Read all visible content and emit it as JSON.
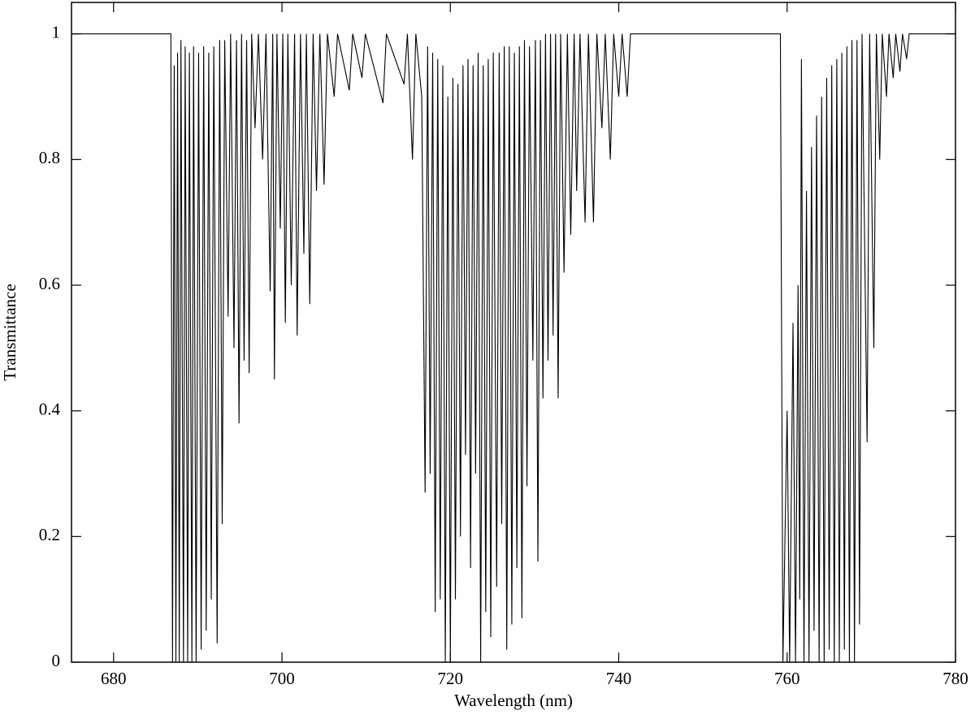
{
  "chart_data": {
    "type": "line",
    "x_label": "Wavelength (nm)",
    "y_label": "Transmittance",
    "color": "#000000",
    "xlim": [
      675,
      780
    ],
    "ylim": [
      0,
      1.05
    ],
    "xticks": [
      680,
      700,
      720,
      740,
      760,
      780
    ],
    "yticks": [
      0,
      0.2,
      0.4,
      0.6,
      0.8,
      1
    ],
    "x": [
      675,
      686.8,
      687.0,
      687.2,
      687.4,
      687.6,
      687.8,
      688.0,
      688.3,
      688.5,
      688.8,
      689.0,
      689.3,
      689.5,
      689.8,
      690.1,
      690.4,
      690.7,
      691.0,
      691.3,
      691.6,
      691.9,
      692.3,
      692.6,
      692.9,
      693.2,
      693.6,
      693.9,
      694.3,
      694.6,
      694.9,
      695.2,
      695.5,
      695.8,
      696.1,
      696.4,
      696.8,
      697.2,
      697.7,
      698.1,
      698.6,
      698.9,
      699.1,
      699.4,
      699.8,
      700.1,
      700.4,
      700.7,
      701.1,
      701.5,
      701.8,
      702.2,
      702.6,
      702.9,
      703.3,
      703.7,
      704.1,
      704.5,
      705.0,
      705.4,
      706.2,
      706.6,
      708.0,
      708.4,
      709.5,
      709.9,
      712.0,
      712.4,
      714.5,
      714.9,
      715.5,
      715.9,
      716.6,
      717.0,
      717.3,
      717.6,
      717.9,
      718.2,
      718.5,
      718.8,
      719.1,
      719.4,
      719.7,
      720.0,
      720.3,
      720.6,
      720.9,
      721.2,
      721.5,
      721.8,
      722.1,
      722.4,
      722.7,
      723.0,
      723.3,
      723.6,
      723.9,
      724.2,
      724.5,
      724.8,
      725.1,
      725.5,
      725.8,
      726.1,
      726.4,
      726.7,
      727.0,
      727.3,
      727.6,
      727.9,
      728.2,
      728.5,
      728.8,
      729.1,
      729.4,
      729.8,
      730.1,
      730.4,
      730.7,
      731.0,
      731.3,
      731.6,
      731.9,
      732.2,
      732.5,
      732.8,
      733.1,
      733.5,
      733.9,
      734.3,
      734.7,
      735.0,
      735.4,
      736.0,
      736.4,
      737.0,
      737.4,
      738.0,
      738.4,
      739.0,
      739.4,
      740.0,
      740.4,
      741.0,
      741.4,
      759.2,
      759.5,
      760.0,
      760.3,
      760.7,
      761.0,
      761.3,
      761.5,
      761.7,
      762.0,
      762.3,
      762.6,
      762.9,
      763.2,
      763.5,
      763.8,
      764.1,
      764.4,
      764.7,
      765.0,
      765.3,
      765.6,
      765.9,
      766.2,
      766.5,
      766.8,
      767.1,
      767.4,
      767.7,
      768.0,
      768.3,
      768.6,
      768.9,
      769.5,
      769.8,
      770.3,
      770.6,
      771.0,
      771.3,
      771.8,
      772.1,
      772.6,
      772.9,
      773.4,
      773.7,
      774.2,
      774.5,
      780
    ],
    "values": [
      1,
      1,
      0,
      0.95,
      0,
      0.97,
      0,
      0.99,
      0,
      0.98,
      0,
      0.97,
      0,
      0.98,
      0,
      0.97,
      0.02,
      0.98,
      0.05,
      0.97,
      0.1,
      0.98,
      0.03,
      0.99,
      0.22,
      0.99,
      0.55,
      1,
      0.5,
      0.99,
      0.38,
      1,
      0.48,
      0.99,
      0.46,
      1,
      0.85,
      1,
      0.8,
      1,
      0.59,
      1,
      0.45,
      1,
      0.69,
      1,
      0.54,
      1,
      0.6,
      1,
      0.52,
      1,
      0.65,
      1,
      0.57,
      1,
      0.75,
      1,
      0.76,
      1,
      0.9,
      1,
      0.91,
      1,
      0.93,
      1,
      0.89,
      1,
      0.92,
      1,
      0.8,
      1,
      0.9,
      0.27,
      0.98,
      0.3,
      0.97,
      0.08,
      0.96,
      0.1,
      0.95,
      0,
      0.9,
      0,
      0.93,
      0.1,
      0.92,
      0.2,
      0.95,
      0.33,
      0.96,
      0.15,
      0.95,
      0.3,
      0.97,
      0,
      0.95,
      0.08,
      0.96,
      0.04,
      0.97,
      0.12,
      0.97,
      0.22,
      0.98,
      0.02,
      0.98,
      0.06,
      0.97,
      0.15,
      0.98,
      0.07,
      0.99,
      0.28,
      0.98,
      0.48,
      0.99,
      0.16,
      0.99,
      0.42,
      1,
      0.48,
      1,
      0.52,
      1,
      0.42,
      1,
      0.62,
      1,
      0.68,
      1,
      0.75,
      1,
      0.7,
      1,
      0.7,
      1,
      0.85,
      1,
      0.8,
      1,
      0.9,
      1,
      0.9,
      1,
      1,
      0,
      0.4,
      0,
      0.54,
      0,
      0.6,
      0.1,
      0.96,
      0,
      0.75,
      0,
      0.82,
      0.05,
      0.87,
      0,
      0.9,
      0,
      0.93,
      0.02,
      0.95,
      0,
      0.96,
      0,
      0.97,
      0.02,
      0.98,
      0,
      0.99,
      0,
      0.99,
      0.06,
      1,
      0.35,
      1,
      0.5,
      1,
      0.8,
      1,
      0.9,
      1,
      0.93,
      1,
      0.94,
      1,
      0.96,
      1,
      1
    ]
  }
}
